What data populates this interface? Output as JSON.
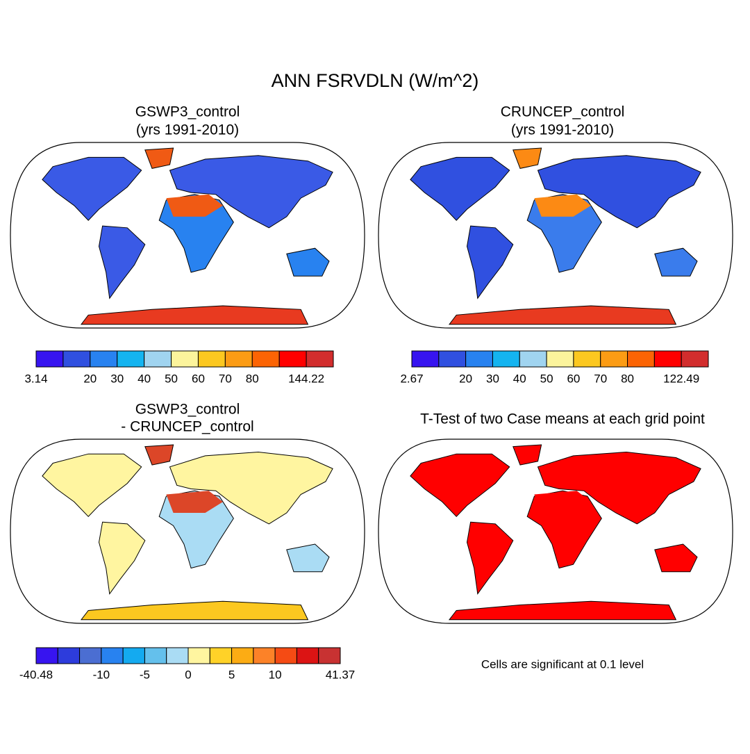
{
  "title": "ANN FSRVDLN (W/m^2)",
  "panels": [
    {
      "title": [
        "GSWP3_control",
        "(yrs 1991-2010)"
      ],
      "colorbar": {
        "colors": [
          "#3714f0",
          "#3050e0",
          "#2882f0",
          "#14b4f0",
          "#a0d4f0",
          "#fcf49c",
          "#fcc820",
          "#fc9c14",
          "#fc6404",
          "#ff0000",
          "#d22d2d"
        ],
        "labels": [
          "3.14",
          null,
          "20",
          "30",
          "40",
          "50",
          "60",
          "70",
          "80",
          null,
          "144.22"
        ]
      }
    },
    {
      "title": [
        "CRUNCEP_control",
        "(yrs 1991-2010)"
      ],
      "colorbar": {
        "colors": [
          "#3714f0",
          "#3050e0",
          "#2882f0",
          "#14b4f0",
          "#a0d4f0",
          "#fcf49c",
          "#fcc820",
          "#fc9c14",
          "#fc6404",
          "#ff0000",
          "#d22d2d"
        ],
        "labels": [
          "2.67",
          null,
          "20",
          "30",
          "40",
          "50",
          "60",
          "70",
          "80",
          null,
          "122.49"
        ]
      }
    },
    {
      "title": [
        "GSWP3_control",
        "- CRUNCEP_control"
      ],
      "colorbar": {
        "colors": [
          "#3714f0",
          "#2d3cdc",
          "#4b6ed2",
          "#2882f0",
          "#14aaf0",
          "#64c0ec",
          "#aadcf4",
          "#fff5a0",
          "#ffd228",
          "#fcac14",
          "#fc8228",
          "#f54b14",
          "#dc1414",
          "#c83232"
        ],
        "labels": [
          "-40.48",
          null,
          null,
          "-10",
          null,
          "-5",
          null,
          "0",
          null,
          "5",
          null,
          "10",
          null,
          null,
          "41.37"
        ]
      }
    },
    {
      "title": [
        "T-Test of two Case means at each grid point"
      ],
      "note": "Cells are significant at 0.1 level"
    }
  ]
}
